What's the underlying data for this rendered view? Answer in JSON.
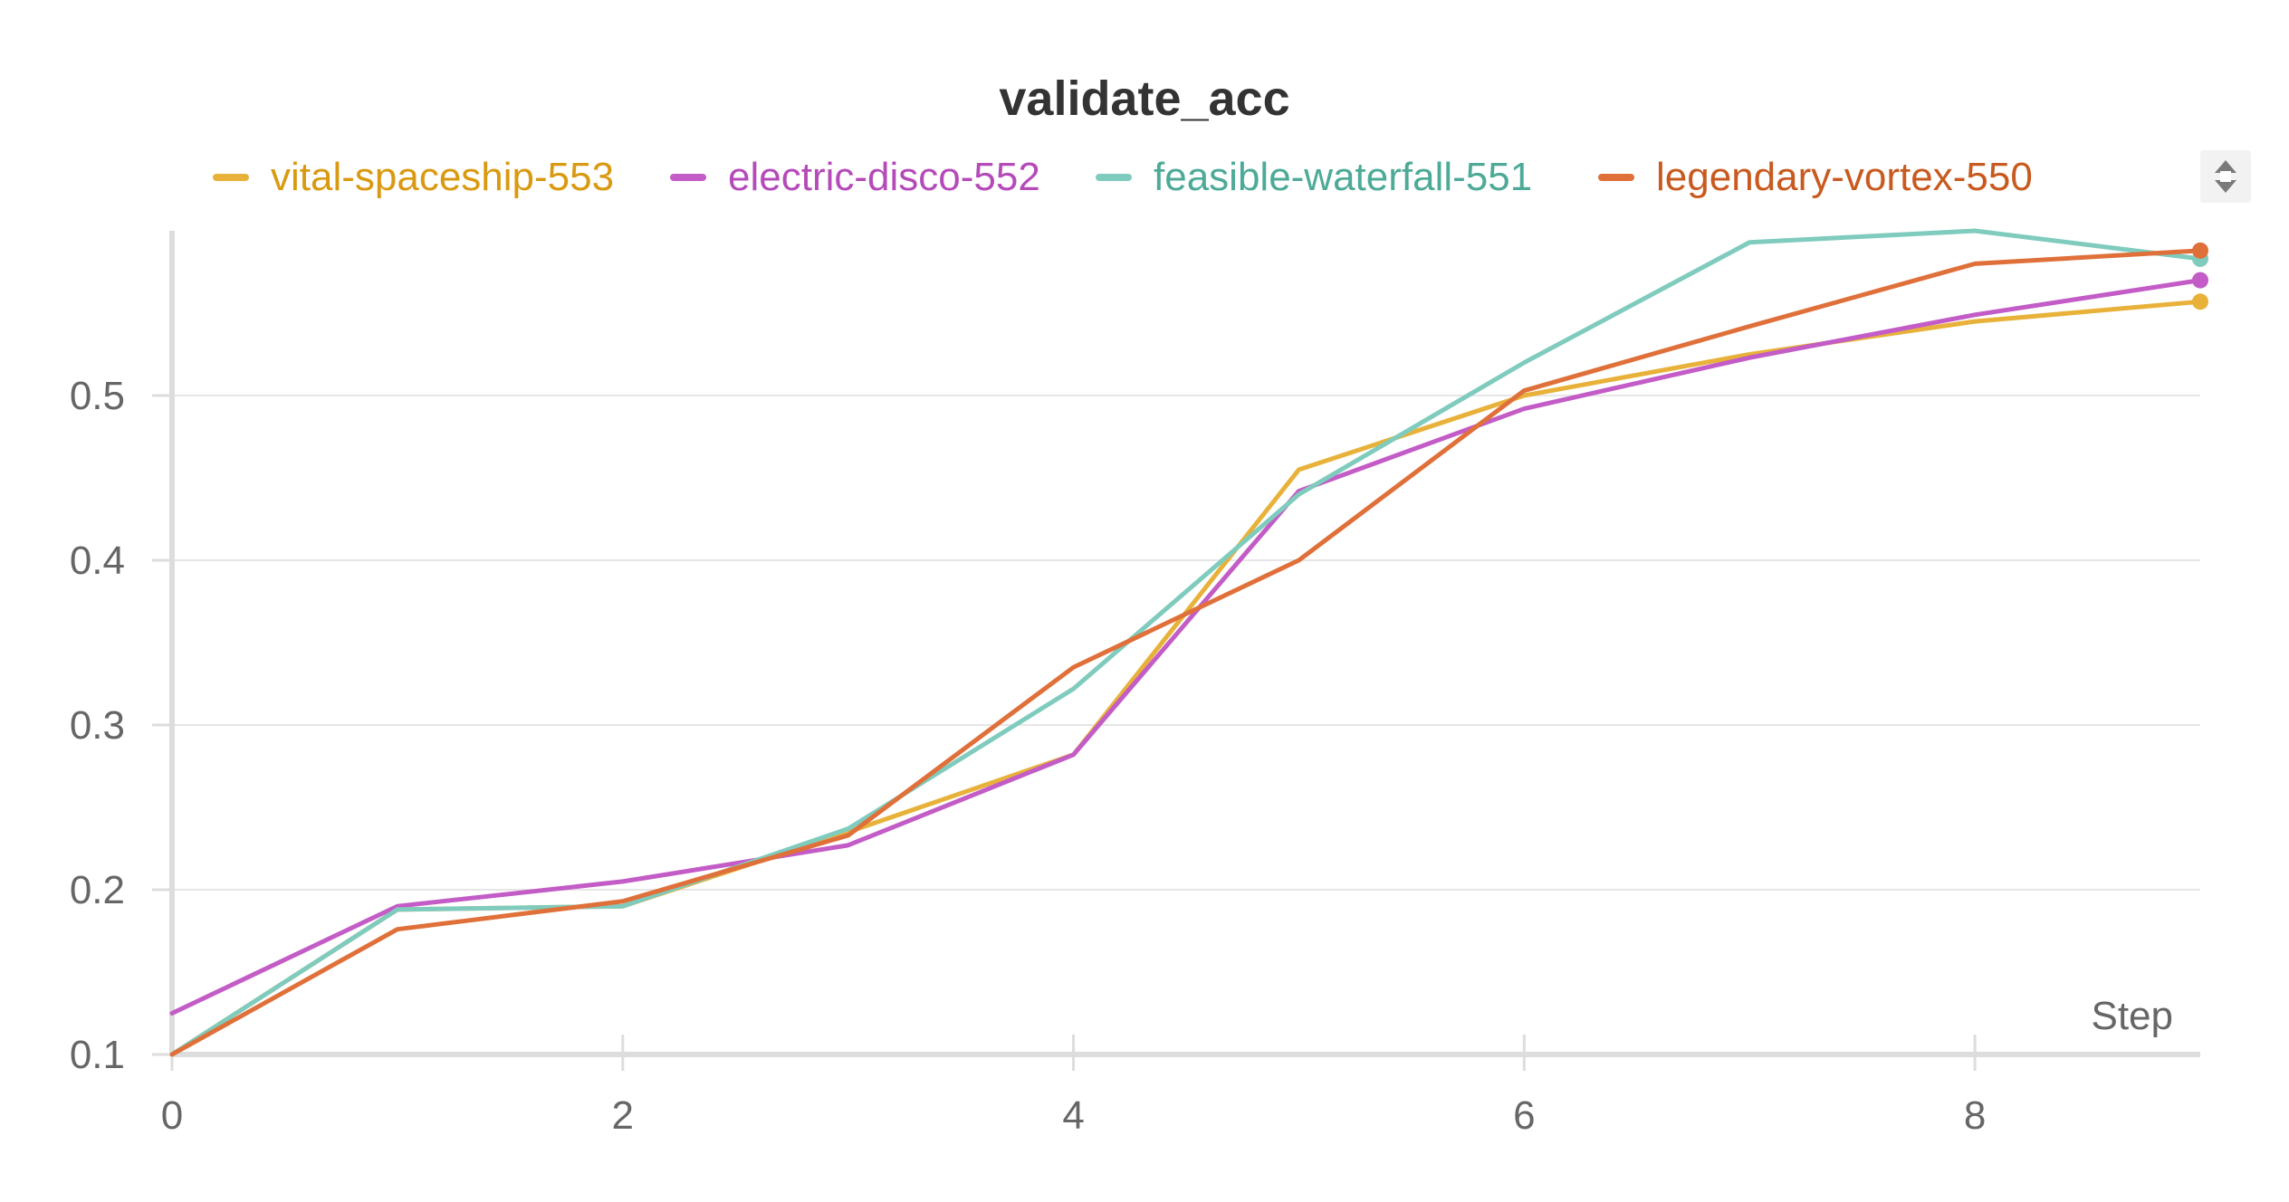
{
  "chart_data": {
    "type": "line",
    "title": "validate_acc",
    "xlabel": "Step",
    "ylabel": "",
    "xlim": [
      0,
      9
    ],
    "ylim": [
      0.1,
      0.6
    ],
    "x_ticks": [
      "0",
      "2",
      "4",
      "6",
      "8"
    ],
    "y_ticks": [
      "0.1",
      "0.2",
      "0.3",
      "0.4",
      "0.5"
    ],
    "grid": true,
    "legend_position": "top",
    "x": [
      0,
      1,
      2,
      3,
      4,
      5,
      6,
      7,
      8,
      9
    ],
    "series": [
      {
        "name": "vital-spaceship-553",
        "color": "#e8b23a",
        "label_color": "#d99a12",
        "values": [
          0.1,
          0.188,
          0.19,
          0.235,
          0.282,
          0.455,
          0.5,
          0.525,
          0.545,
          0.557
        ]
      },
      {
        "name": "electric-disco-552",
        "color": "#c35cc6",
        "label_color": "#b54ab9",
        "values": [
          0.125,
          0.19,
          0.205,
          0.227,
          0.282,
          0.442,
          0.492,
          0.523,
          0.549,
          0.57
        ]
      },
      {
        "name": "feasible-waterfall-551",
        "color": "#7fcbbd",
        "label_color": "#4daa97",
        "values": [
          0.1,
          0.188,
          0.19,
          0.237,
          0.322,
          0.44,
          0.52,
          0.593,
          0.6,
          0.583
        ]
      },
      {
        "name": "legendary-vortex-550",
        "color": "#e0703a",
        "label_color": "#c85a1f",
        "values": [
          0.1,
          0.176,
          0.193,
          0.233,
          0.335,
          0.4,
          0.503,
          0.542,
          0.58,
          0.588
        ]
      }
    ]
  }
}
